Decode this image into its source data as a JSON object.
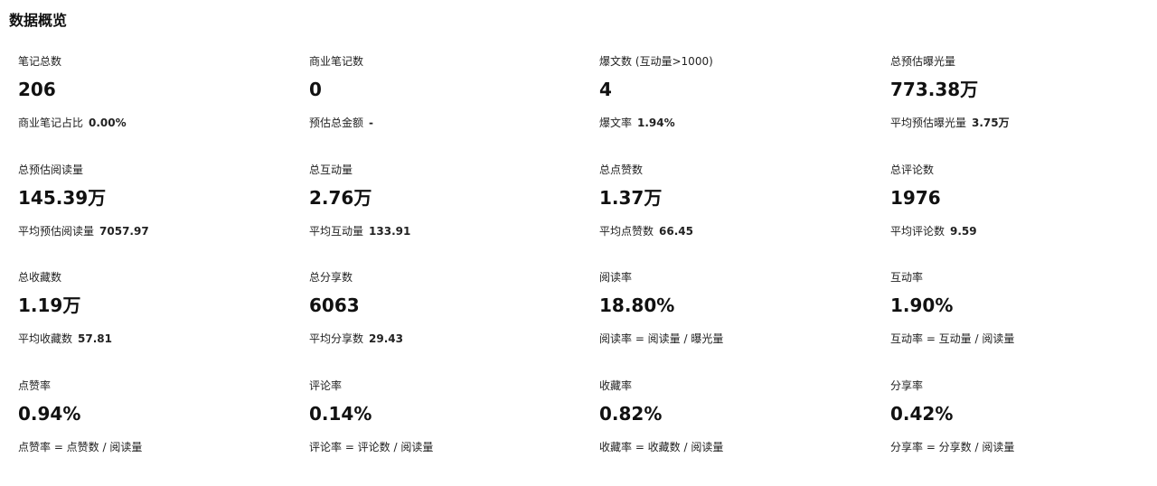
{
  "page": {
    "title": "数据概览"
  },
  "metrics": [
    {
      "label": "笔记总数",
      "value": "206",
      "sub_label": "商业笔记占比",
      "sub_value": "0.00%"
    },
    {
      "label": "商业笔记数",
      "value": "0",
      "sub_label": "预估总金额",
      "sub_value": "-"
    },
    {
      "label": "爆文数 (互动量>1000)",
      "value": "4",
      "sub_label": "爆文率",
      "sub_value": "1.94%"
    },
    {
      "label": "总预估曝光量",
      "value": "773.38万",
      "sub_label": "平均预估曝光量",
      "sub_value": "3.75万"
    },
    {
      "label": "总预估阅读量",
      "value": "145.39万",
      "sub_label": "平均预估阅读量",
      "sub_value": "7057.97"
    },
    {
      "label": "总互动量",
      "value": "2.76万",
      "sub_label": "平均互动量",
      "sub_value": "133.91"
    },
    {
      "label": "总点赞数",
      "value": "1.37万",
      "sub_label": "平均点赞数",
      "sub_value": "66.45"
    },
    {
      "label": "总评论数",
      "value": "1976",
      "sub_label": "平均评论数",
      "sub_value": "9.59"
    },
    {
      "label": "总收藏数",
      "value": "1.19万",
      "sub_label": "平均收藏数",
      "sub_value": "57.81"
    },
    {
      "label": "总分享数",
      "value": "6063",
      "sub_label": "平均分享数",
      "sub_value": "29.43"
    },
    {
      "label": "阅读率",
      "value": "18.80%",
      "sub_label": "阅读率 = 阅读量 / 曝光量",
      "sub_value": ""
    },
    {
      "label": "互动率",
      "value": "1.90%",
      "sub_label": "互动率 = 互动量 / 阅读量",
      "sub_value": ""
    },
    {
      "label": "点赞率",
      "value": "0.94%",
      "sub_label": "点赞率 = 点赞数 / 阅读量",
      "sub_value": ""
    },
    {
      "label": "评论率",
      "value": "0.14%",
      "sub_label": "评论率 = 评论数 / 阅读量",
      "sub_value": ""
    },
    {
      "label": "收藏率",
      "value": "0.82%",
      "sub_label": "收藏率 = 收藏数 / 阅读量",
      "sub_value": ""
    },
    {
      "label": "分享率",
      "value": "0.42%",
      "sub_label": "分享率 = 分享数 / 阅读量",
      "sub_value": ""
    }
  ]
}
